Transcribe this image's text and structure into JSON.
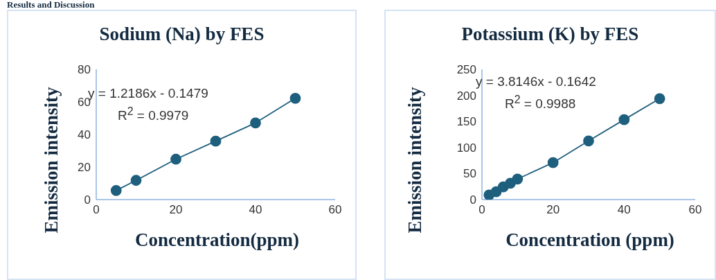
{
  "chart_data": [
    {
      "type": "line",
      "title": "Sodium (Na) by FES",
      "xlabel": "Concentration(ppm)",
      "ylabel": "Emission intensity",
      "x": [
        5,
        10,
        20,
        30,
        40,
        50
      ],
      "series": [
        {
          "color": "#1f5f7e",
          "values": [
            5.6,
            11.8,
            24.8,
            35.9,
            47.1,
            62.2
          ]
        }
      ],
      "xlim": [
        0,
        60
      ],
      "xticks": [
        0,
        20,
        40,
        60
      ],
      "ylim": [
        0,
        80
      ],
      "yticks": [
        0,
        20,
        40,
        60,
        80
      ],
      "grid": false,
      "legend": false,
      "marker": "circle",
      "line_style": "solid",
      "annotations": [
        "Results and Discussion",
        "y = 1.2186x - 0.1479",
        "R$^{2}$ = 0.9979"
      ]
    },
    {
      "type": "line",
      "title": "Potassium (K) by FES",
      "xlabel": "Concentration (ppm)",
      "ylabel": "Emission intensity",
      "x": [
        2,
        4,
        6,
        8,
        10,
        20,
        30,
        40,
        50
      ],
      "series": [
        {
          "color": "#1f5f7e",
          "values": [
            8.9,
            15.1,
            24.4,
            31.5,
            39.5,
            70.9,
            112.6,
            153.4,
            193.7
          ]
        }
      ],
      "xlim": [
        0,
        60
      ],
      "xticks": [
        0,
        20,
        40,
        60
      ],
      "ylim": [
        0,
        250
      ],
      "yticks": [
        0,
        50,
        100,
        150,
        200,
        250
      ],
      "grid": false,
      "legend": false,
      "marker": "circle",
      "line_style": "solid",
      "annotations": [
        "y = 3.8146x - 0.1642",
        "R$^{2}$ = 0.9988"
      ]
    }
  ]
}
